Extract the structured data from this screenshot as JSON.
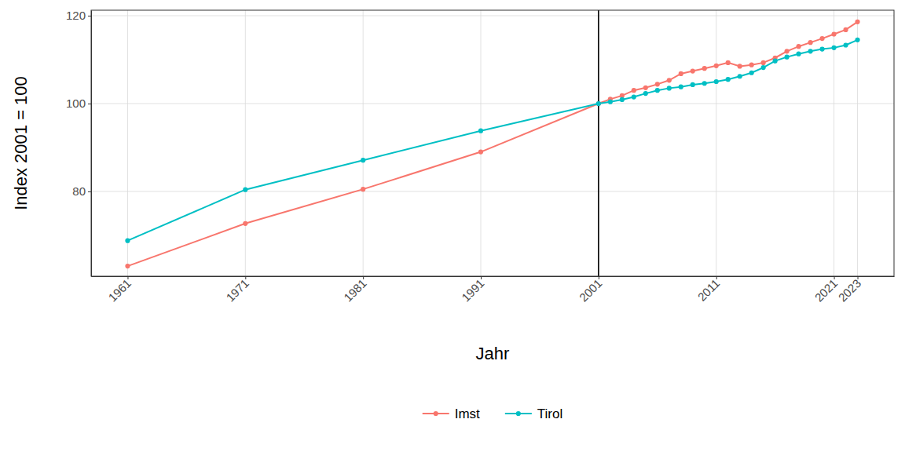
{
  "chart_data": {
    "type": "line",
    "x_label": "Jahr",
    "y_label": "Index 2001 = 100",
    "x": [
      1961,
      1971,
      1981,
      1991,
      2001,
      2002,
      2003,
      2004,
      2005,
      2006,
      2007,
      2008,
      2009,
      2010,
      2011,
      2012,
      2013,
      2014,
      2015,
      2016,
      2017,
      2018,
      2019,
      2020,
      2021,
      2022,
      2023
    ],
    "series": [
      {
        "name": "Imst",
        "color": "#F8766D",
        "values": [
          63.0,
          72.7,
          80.5,
          89.0,
          100.0,
          101.0,
          101.8,
          103.0,
          103.6,
          104.4,
          105.3,
          106.8,
          107.4,
          108.0,
          108.6,
          109.3,
          108.5,
          108.8,
          109.3,
          110.4,
          111.9,
          113.0,
          113.9,
          114.8,
          115.8,
          116.8,
          118.6
        ]
      },
      {
        "name": "Tirol",
        "color": "#00BFC4",
        "values": [
          68.8,
          80.4,
          87.1,
          93.8,
          100.0,
          100.4,
          100.9,
          101.5,
          102.3,
          103.0,
          103.5,
          103.8,
          104.3,
          104.6,
          105.0,
          105.5,
          106.2,
          107.0,
          108.2,
          109.7,
          110.6,
          111.3,
          111.9,
          112.4,
          112.7,
          113.3,
          114.5
        ]
      }
    ],
    "xlim": [
      1957.9,
      2026.1
    ],
    "xticks": [
      1961,
      1971,
      1981,
      1991,
      2001,
      2011,
      2021,
      2023
    ],
    "ylim": [
      60.7,
      121.25
    ],
    "yticks": [
      80,
      100,
      120
    ],
    "reference_line": 2001,
    "grid": true,
    "legend": "bottom",
    "marker": "circle",
    "line_style": "solid"
  }
}
